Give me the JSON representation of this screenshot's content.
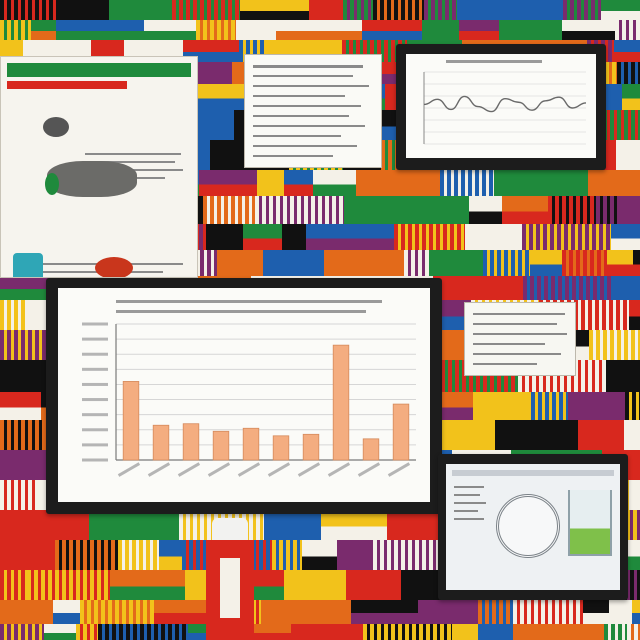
{
  "colors": {
    "bar": "#f4ad80",
    "bar_stroke": "#d58a5c",
    "bezel": "#1c1c1c",
    "screen": "#fbfbf8",
    "line_plot": "#6a6a6a",
    "collage": [
      "#d8281e",
      "#f2c21b",
      "#1e5fae",
      "#1f8a3c",
      "#111111",
      "#e36a1a",
      "#f4f1e8",
      "#7a2b6d"
    ]
  },
  "icons": [
    "pill-icon",
    "capsule-icon",
    "bottle-icon",
    "beaker-icon",
    "gauge-icon",
    "line-chart-icon",
    "bar-chart-icon"
  ],
  "chart_data": [
    {
      "type": "bar",
      "categories": [
        "",
        "",
        "",
        "",
        "",
        "",
        "",
        "",
        "",
        ""
      ],
      "values": [
        52,
        23,
        24,
        19,
        21,
        16,
        17,
        76,
        14,
        37
      ],
      "ylim": [
        0,
        90
      ],
      "grid": true,
      "legend": "none"
    },
    {
      "type": "line",
      "x": [
        0,
        1,
        2,
        3,
        4,
        5,
        6,
        7,
        8,
        9,
        10,
        11,
        12
      ],
      "values": [
        55,
        62,
        48,
        66,
        52,
        45,
        63,
        58,
        47,
        60,
        65,
        50,
        57
      ],
      "ylim": [
        0,
        100
      ],
      "grid": true,
      "legend": "none"
    }
  ]
}
